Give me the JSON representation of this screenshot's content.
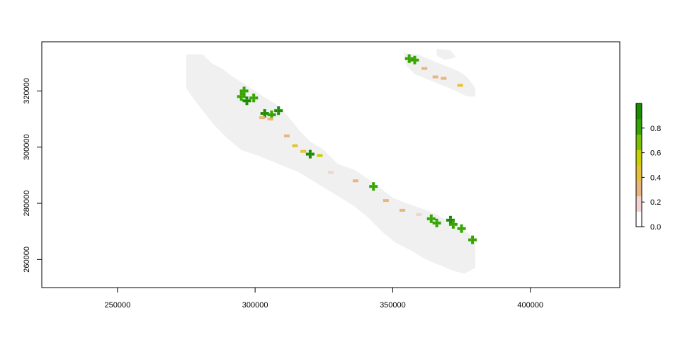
{
  "chart_data": {
    "type": "heatmap",
    "subtype": "raster-map",
    "title": "",
    "xlabel": "",
    "ylabel": "",
    "xlim": [
      222500,
      432500
    ],
    "ylim": [
      250000,
      337500
    ],
    "x_ticks": [
      250000,
      300000,
      350000,
      400000
    ],
    "x_tick_labels": [
      "250000",
      "300000",
      "350000",
      "400000"
    ],
    "y_ticks": [
      260000,
      280000,
      300000,
      320000
    ],
    "y_tick_labels": [
      "260000",
      "280000",
      "300000",
      "320000"
    ],
    "grid": false,
    "background_color": "#f0f0f0",
    "legend": {
      "type": "colorbar",
      "placement": "right",
      "range": [
        0.0,
        1.0
      ],
      "ticks": [
        0.0,
        0.2,
        0.4,
        0.6,
        0.8
      ],
      "tick_labels": [
        "0.0",
        "0.2",
        "0.4",
        "0.6",
        "0.8"
      ],
      "colors": [
        "#ffffff",
        "#f2d3cf",
        "#e9b57c",
        "#e6c03a",
        "#c6d100",
        "#79c000",
        "#35a400",
        "#1a8c00"
      ]
    },
    "regions": [
      {
        "name": "",
        "value": 0.0,
        "polygon": [
          [
            275000,
            333000
          ],
          [
            281000,
            333000
          ],
          [
            284000,
            330000
          ],
          [
            288000,
            328000
          ],
          [
            292000,
            325000
          ],
          [
            297000,
            322000
          ],
          [
            303000,
            318000
          ],
          [
            308000,
            315000
          ],
          [
            312000,
            311000
          ],
          [
            316000,
            306000
          ],
          [
            320000,
            302000
          ],
          [
            325000,
            299000
          ],
          [
            330000,
            294000
          ],
          [
            336000,
            292000
          ],
          [
            342000,
            288000
          ],
          [
            346000,
            285000
          ],
          [
            350000,
            282000
          ],
          [
            355000,
            280000
          ],
          [
            361000,
            278000
          ],
          [
            366000,
            276000
          ],
          [
            371000,
            273000
          ],
          [
            375000,
            271000
          ],
          [
            378000,
            269000
          ],
          [
            380000,
            265000
          ],
          [
            380000,
            257000
          ],
          [
            376000,
            255000
          ],
          [
            372000,
            256000
          ],
          [
            367000,
            258000
          ],
          [
            362000,
            260000
          ],
          [
            357000,
            263000
          ],
          [
            351000,
            266000
          ],
          [
            346000,
            270000
          ],
          [
            341000,
            275000
          ],
          [
            336000,
            279000
          ],
          [
            331000,
            282000
          ],
          [
            326000,
            285000
          ],
          [
            321000,
            288000
          ],
          [
            316000,
            291000
          ],
          [
            311000,
            293000
          ],
          [
            306000,
            295000
          ],
          [
            301000,
            297000
          ],
          [
            295000,
            299000
          ],
          [
            290000,
            303000
          ],
          [
            285000,
            308000
          ],
          [
            281000,
            313000
          ],
          [
            277000,
            318000
          ],
          [
            275000,
            321000
          ]
        ]
      },
      {
        "name": "",
        "value": 0.0,
        "polygon": [
          [
            354000,
            333500
          ],
          [
            359000,
            333000
          ],
          [
            364000,
            331000
          ],
          [
            369000,
            329000
          ],
          [
            374000,
            327000
          ],
          [
            377000,
            325000
          ],
          [
            380000,
            321000
          ],
          [
            380000,
            318000
          ],
          [
            377000,
            318000
          ],
          [
            373000,
            320000
          ],
          [
            368000,
            322000
          ],
          [
            363000,
            324000
          ],
          [
            358000,
            326000
          ],
          [
            355000,
            329000
          ]
        ]
      },
      {
        "name": "",
        "value": 0.0,
        "polygon": [
          [
            366000,
            335000
          ],
          [
            371000,
            334500
          ],
          [
            373000,
            332000
          ],
          [
            369000,
            331000
          ],
          [
            366000,
            332500
          ]
        ]
      }
    ],
    "cells": [
      {
        "x": 295000,
        "y": 318000,
        "value": 0.9
      },
      {
        "x": 297000,
        "y": 316500,
        "value": 0.95
      },
      {
        "x": 299500,
        "y": 317500,
        "value": 0.85
      },
      {
        "x": 296000,
        "y": 320000,
        "value": 0.9
      },
      {
        "x": 303500,
        "y": 312000,
        "value": 0.95
      },
      {
        "x": 306000,
        "y": 311500,
        "value": 0.9
      },
      {
        "x": 308500,
        "y": 313000,
        "value": 0.95
      },
      {
        "x": 302000,
        "y": 310500,
        "value": 0.3
      },
      {
        "x": 305000,
        "y": 310000,
        "value": 0.35
      },
      {
        "x": 311000,
        "y": 304000,
        "value": 0.35
      },
      {
        "x": 314000,
        "y": 300500,
        "value": 0.45
      },
      {
        "x": 317000,
        "y": 298500,
        "value": 0.4
      },
      {
        "x": 320000,
        "y": 297500,
        "value": 0.95
      },
      {
        "x": 323000,
        "y": 297000,
        "value": 0.5
      },
      {
        "x": 327000,
        "y": 291000,
        "value": 0.2
      },
      {
        "x": 336000,
        "y": 288000,
        "value": 0.25
      },
      {
        "x": 343000,
        "y": 286000,
        "value": 0.9
      },
      {
        "x": 347000,
        "y": 281000,
        "value": 0.3
      },
      {
        "x": 353000,
        "y": 277500,
        "value": 0.25
      },
      {
        "x": 359000,
        "y": 276000,
        "value": 0.2
      },
      {
        "x": 364000,
        "y": 274500,
        "value": 0.9
      },
      {
        "x": 366000,
        "y": 273000,
        "value": 0.85
      },
      {
        "x": 371000,
        "y": 274000,
        "value": 0.95
      },
      {
        "x": 372000,
        "y": 272500,
        "value": 0.9
      },
      {
        "x": 375000,
        "y": 271000,
        "value": 0.85
      },
      {
        "x": 379000,
        "y": 267000,
        "value": 0.9
      },
      {
        "x": 356000,
        "y": 331500,
        "value": 0.9
      },
      {
        "x": 358000,
        "y": 331000,
        "value": 0.85
      },
      {
        "x": 361000,
        "y": 328000,
        "value": 0.3
      },
      {
        "x": 365000,
        "y": 325000,
        "value": 0.35
      },
      {
        "x": 368000,
        "y": 324500,
        "value": 0.3
      },
      {
        "x": 374000,
        "y": 322000,
        "value": 0.4
      }
    ]
  }
}
